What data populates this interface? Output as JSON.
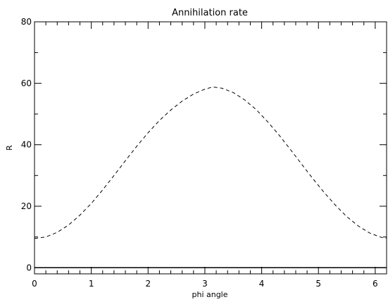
{
  "chart_data": {
    "type": "line",
    "title": "Annihilation rate",
    "xlabel": "phi angle",
    "ylabel": "R",
    "xlim": [
      0,
      6.2
    ],
    "ylim": [
      -2,
      80
    ],
    "grid": false,
    "x_ticks": [
      0,
      1,
      2,
      3,
      4,
      5,
      6
    ],
    "y_ticks": [
      0,
      20,
      40,
      60,
      80
    ],
    "series": [
      {
        "style": "dashed",
        "x": [
          0,
          0.2,
          0.4,
          0.6,
          0.8,
          1.0,
          1.2,
          1.4,
          1.6,
          1.8,
          2.0,
          2.2,
          2.4,
          2.6,
          2.8,
          3.0,
          3.14,
          3.3,
          3.5,
          3.7,
          3.9,
          4.1,
          4.3,
          4.5,
          4.7,
          4.9,
          5.1,
          5.3,
          5.5,
          5.7,
          5.9,
          6.1,
          6.2
        ],
        "y": [
          9.5,
          10.0,
          11.5,
          13.9,
          17.1,
          20.9,
          25.3,
          30.0,
          34.8,
          39.5,
          43.9,
          47.9,
          51.3,
          54.2,
          56.5,
          58.1,
          58.8,
          58.4,
          57.0,
          54.6,
          51.5,
          47.6,
          43.3,
          38.6,
          33.8,
          29.0,
          24.5,
          20.3,
          16.6,
          13.6,
          11.3,
          9.9,
          9.6
        ]
      },
      {
        "style": "solid",
        "x": [
          0,
          6.2
        ],
        "y": [
          0,
          0
        ]
      }
    ]
  }
}
